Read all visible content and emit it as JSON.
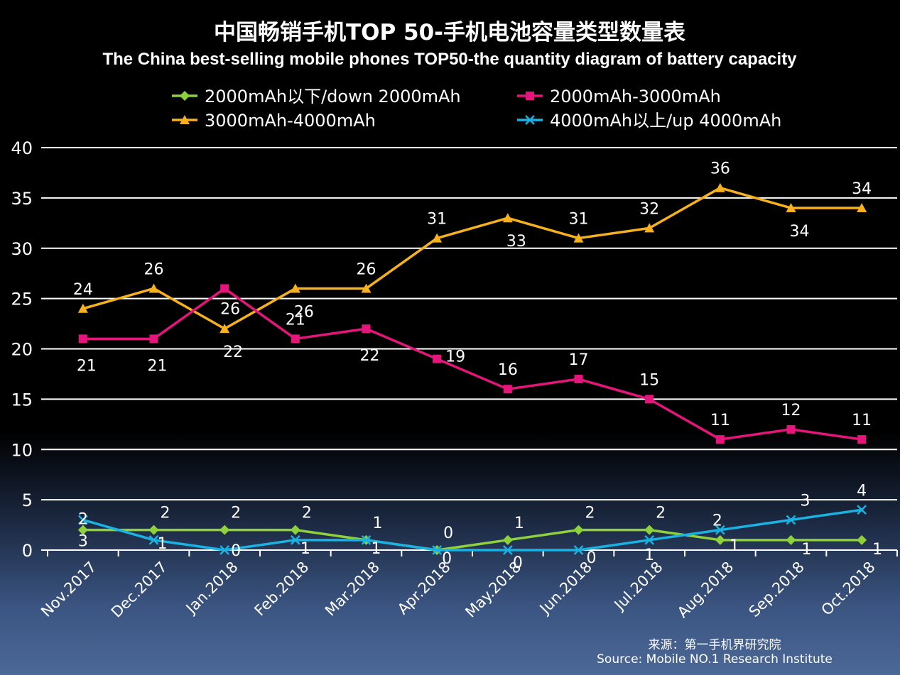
{
  "chart_data": {
    "type": "line",
    "title": "中国畅销手机TOP 50-手机电池容量类型数量表",
    "subtitle": "The China best-selling mobile phones TOP50-the quantity diagram of battery capacity",
    "categories": [
      "Nov.2017",
      "Dec.2017",
      "Jan.2018",
      "Feb.2018",
      "Mar.2018",
      "Apr.2018",
      "May.2018",
      "Jun.2018",
      "Jul.2018",
      "Aug.2018",
      "Sep.2018",
      "Oct.2018"
    ],
    "ylim": [
      0,
      40
    ],
    "yticks": [
      0,
      5,
      10,
      15,
      20,
      25,
      30,
      35,
      40
    ],
    "grid": true,
    "legend_position": "top",
    "series": [
      {
        "name": "2000mAh以下/down 2000mAh",
        "color": "#8ed13c",
        "marker": "diamond",
        "values": [
          2,
          2,
          2,
          2,
          1,
          0,
          1,
          2,
          2,
          1,
          1,
          1
        ]
      },
      {
        "name": "2000mAh-3000mAh",
        "color": "#e6157c",
        "marker": "square",
        "values": [
          21,
          21,
          26,
          21,
          22,
          19,
          16,
          17,
          15,
          11,
          12,
          11
        ]
      },
      {
        "name": "3000mAh-4000mAh",
        "color": "#f7b01e",
        "marker": "triangle",
        "values": [
          24,
          26,
          22,
          26,
          26,
          31,
          33,
          31,
          32,
          36,
          34,
          34
        ]
      },
      {
        "name": "4000mAh以上/up 4000mAh",
        "color": "#1ab2e3",
        "marker": "x",
        "values": [
          3,
          1,
          0,
          1,
          1,
          0,
          0,
          0,
          1,
          2,
          3,
          4
        ]
      }
    ],
    "source": [
      "来源：第一手机界研究院",
      "Source: Mobile NO.1 Research Institute"
    ]
  },
  "colors": {
    "grid": "#ffffff",
    "text": "#ffffff",
    "background": "#000000"
  }
}
